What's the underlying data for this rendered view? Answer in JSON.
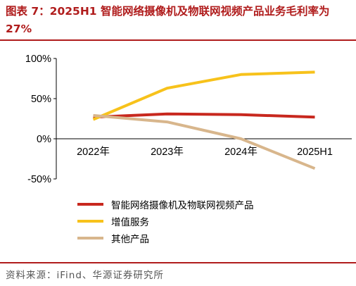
{
  "title": "图表 7：2025H1 智能网络摄像机及物联网视频产品业务毛利率为 27%",
  "source": "资料来源：iFind、华源证券研究所",
  "chart_data": {
    "type": "line",
    "categories": [
      "2022年",
      "2023年",
      "2024年",
      "2025H1"
    ],
    "y_ticks": [
      "100%",
      "50%",
      "0%",
      "-50%"
    ],
    "ylim": [
      -50,
      100
    ],
    "unit": "%",
    "grid": false,
    "legend_position": "bottom",
    "series": [
      {
        "name": "智能网络摄像机及物联网视频产品",
        "color": "#c8281e",
        "values": [
          27,
          31,
          30,
          27
        ]
      },
      {
        "name": "增值服务",
        "color": "#f7c21b",
        "values": [
          24,
          63,
          80,
          83
        ]
      },
      {
        "name": "其他产品",
        "color": "#d8b68c",
        "values": [
          29,
          21,
          0,
          -37
        ]
      }
    ]
  }
}
